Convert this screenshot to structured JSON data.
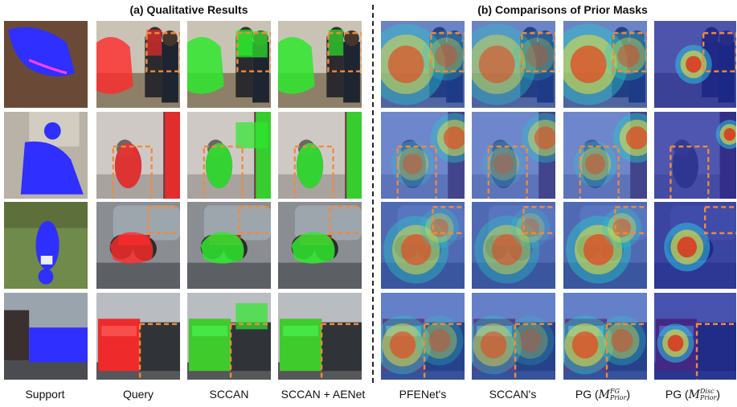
{
  "section_a_title": "(a) Qualitative Results",
  "section_b_title": "(b) Comparisons of Prior Masks",
  "columns": {
    "support": "Support",
    "query": "Query",
    "sccan": "SCCAN",
    "sccan_aenet": "SCCAN + AENet",
    "pfenet": "PFENet's",
    "sccan_prior": "SCCAN's",
    "pg_fg_prefix": "PG (",
    "pg_fg_M": "M",
    "pg_fg_sup": "FG",
    "pg_fg_sub": "Prior",
    "pg_fg_suffix": ")",
    "pg_disc_prefix": "PG (",
    "pg_disc_M": "M",
    "pg_disc_sup": "Disc",
    "pg_disc_sub": "Prior",
    "pg_disc_suffix": ")"
  },
  "rows": [
    {
      "subject": "horse"
    },
    {
      "subject": "cat"
    },
    {
      "subject": "motorbike"
    },
    {
      "subject": "bus"
    }
  ],
  "colors": {
    "ground_truth_red": "#ff2a2a",
    "prediction_green": "#2ee82e",
    "support_blue": "#2f2fff",
    "dashed_box": "#f08a3c",
    "disc_background": "#1c2aa8"
  }
}
